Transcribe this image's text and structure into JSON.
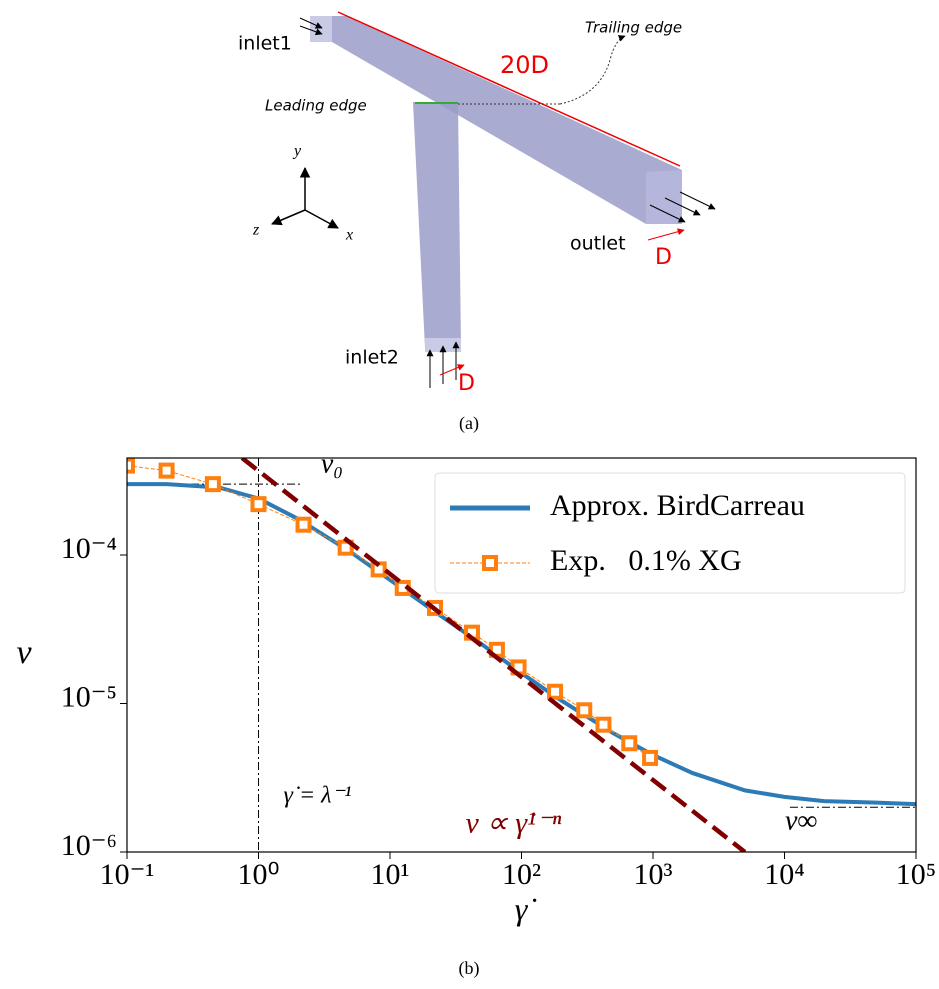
{
  "diagram": {
    "labels": {
      "inlet1": "inlet1",
      "inlet2": "inlet2",
      "outlet": "outlet",
      "length": "20D",
      "outlet_width": "D",
      "inlet2_width": "D",
      "trailing_edge": "Trailing edge",
      "leading_edge": "Leading edge",
      "axis_y": "y",
      "axis_z": "z",
      "axis_x": "x"
    },
    "caption": "(a)"
  },
  "chart_data": {
    "type": "line",
    "caption": "(b)",
    "x_label": "γ̇",
    "y_label": "ν",
    "x_log": true,
    "y_log": true,
    "legend": "upper right",
    "xlim": [
      0.1,
      100000
    ],
    "ylim": [
      1e-06,
      0.00045
    ],
    "xticks": [
      {
        "value": 0.1,
        "label": "10⁻¹"
      },
      {
        "value": 1,
        "label": "10⁰"
      },
      {
        "value": 10,
        "label": "10¹"
      },
      {
        "value": 100,
        "label": "10²"
      },
      {
        "value": 1000,
        "label": "10³"
      },
      {
        "value": 10000,
        "label": "10⁴"
      },
      {
        "value": 100000,
        "label": "10⁵"
      }
    ],
    "yticks": [
      {
        "value": 1e-06,
        "label": "10⁻⁶"
      },
      {
        "value": 1e-05,
        "label": "10⁻⁵"
      },
      {
        "value": 0.0001,
        "label": "10⁻⁴"
      }
    ],
    "series": [
      {
        "name": "Approx. BirdCarreau",
        "color": "#2c7bb6",
        "style": "solid",
        "x": [
          0.1,
          0.2,
          0.5,
          1,
          2,
          5,
          10,
          20,
          50,
          100,
          200,
          500,
          1000,
          2000,
          5000,
          10000,
          20000,
          50000,
          100000
        ],
        "values": [
          0.0003,
          0.0003,
          0.000285,
          0.00024,
          0.000175,
          0.000105,
          6.8e-05,
          4.4e-05,
          2.5e-05,
          1.6e-05,
          1.05e-05,
          6.3e-06,
          4.5e-06,
          3.4e-06,
          2.6e-06,
          2.35e-06,
          2.2e-06,
          2.15e-06,
          2.1e-06
        ]
      },
      {
        "name": "Exp.   0.1% XG",
        "color": "#ff7f0e",
        "style": "dashed",
        "marker": "square",
        "x": [
          0.1,
          0.2,
          0.45,
          1,
          2.2,
          4.6,
          8.2,
          12.5,
          22,
          42,
          65,
          95,
          180,
          300,
          420,
          660,
          950
        ],
        "values": [
          0.0004,
          0.00037,
          0.0003,
          0.00022,
          0.00016,
          0.000112,
          8e-05,
          6e-05,
          4.4e-05,
          3e-05,
          2.3e-05,
          1.75e-05,
          1.2e-05,
          9e-06,
          7.2e-06,
          5.4e-06,
          4.3e-06
        ]
      },
      {
        "label": "ν ∝ γ̇¹⁻ⁿ",
        "color": "#800000",
        "style": "dashed",
        "x": [
          0.75,
          5000
        ],
        "values": [
          0.00045,
          1e-06
        ]
      }
    ],
    "reference_lines": [
      {
        "label": "ν₀",
        "y": 0.0003,
        "x": [
          0.1,
          2.1
        ]
      },
      {
        "label": "ν∞",
        "y": 2e-06,
        "x": [
          11000,
          100000
        ]
      },
      {
        "label": "γ̇ = λ⁻¹",
        "x": 1
      }
    ]
  }
}
